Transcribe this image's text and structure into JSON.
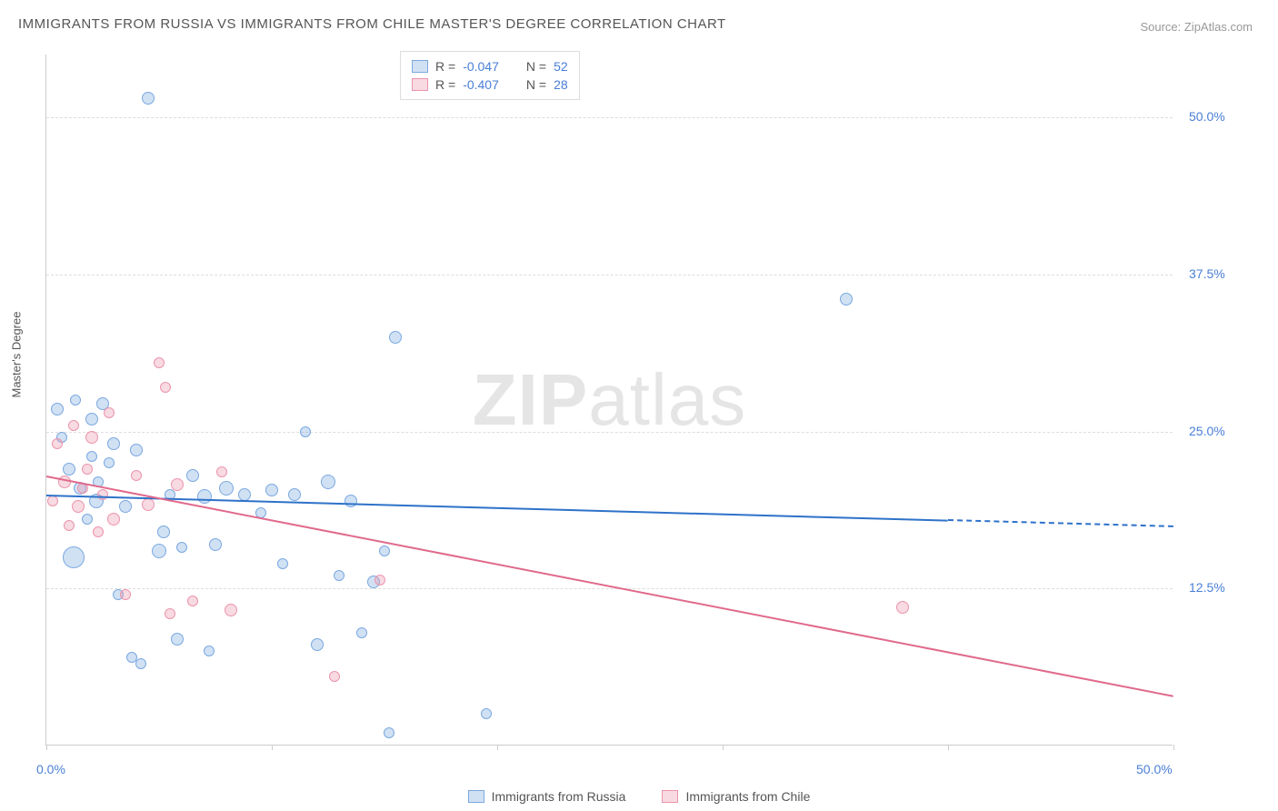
{
  "title": "IMMIGRANTS FROM RUSSIA VS IMMIGRANTS FROM CHILE MASTER'S DEGREE CORRELATION CHART",
  "source": "Source: ZipAtlas.com",
  "ylabel": "Master's Degree",
  "watermark_bold": "ZIP",
  "watermark_light": "atlas",
  "chart": {
    "type": "scatter",
    "xlim": [
      0,
      50
    ],
    "ylim": [
      0,
      55
    ],
    "xticks": [
      0,
      10,
      20,
      30,
      40,
      50
    ],
    "xtick_labels": [
      "0.0%",
      "",
      "",
      "",
      "",
      "50.0%"
    ],
    "yticks": [
      12.5,
      25.0,
      37.5,
      50.0
    ],
    "ytick_labels": [
      "12.5%",
      "25.0%",
      "37.5%",
      "50.0%"
    ],
    "background_color": "#ffffff",
    "grid_color": "#dddddd",
    "axis_color": "#cccccc",
    "tick_label_color": "#4a7fd6",
    "label_color": "#555555"
  },
  "series": [
    {
      "name": "Immigrants from Russia",
      "fill": "rgba(122,168,224,0.35)",
      "stroke": "#7aa8e0",
      "trend_color": "#2e72c9",
      "trend_y_start": 20.0,
      "trend_y_end": 17.5,
      "trend_x_solid_end": 40,
      "R": "-0.047",
      "N": "52",
      "points": [
        {
          "x": 0.5,
          "y": 26.8,
          "r": 7
        },
        {
          "x": 0.7,
          "y": 24.5,
          "r": 6
        },
        {
          "x": 1.0,
          "y": 22.0,
          "r": 7
        },
        {
          "x": 1.2,
          "y": 15.0,
          "r": 12
        },
        {
          "x": 1.3,
          "y": 27.5,
          "r": 6
        },
        {
          "x": 1.5,
          "y": 20.5,
          "r": 7
        },
        {
          "x": 1.8,
          "y": 18.0,
          "r": 6
        },
        {
          "x": 2.0,
          "y": 26.0,
          "r": 7
        },
        {
          "x": 2.0,
          "y": 23.0,
          "r": 6
        },
        {
          "x": 2.2,
          "y": 19.5,
          "r": 8
        },
        {
          "x": 2.3,
          "y": 21.0,
          "r": 6
        },
        {
          "x": 2.5,
          "y": 27.2,
          "r": 7
        },
        {
          "x": 2.8,
          "y": 22.5,
          "r": 6
        },
        {
          "x": 3.0,
          "y": 24.0,
          "r": 7
        },
        {
          "x": 3.2,
          "y": 12.0,
          "r": 6
        },
        {
          "x": 3.5,
          "y": 19.0,
          "r": 7
        },
        {
          "x": 3.8,
          "y": 7.0,
          "r": 6
        },
        {
          "x": 4.0,
          "y": 23.5,
          "r": 7
        },
        {
          "x": 4.2,
          "y": 6.5,
          "r": 6
        },
        {
          "x": 4.5,
          "y": 51.5,
          "r": 7
        },
        {
          "x": 5.0,
          "y": 15.5,
          "r": 8
        },
        {
          "x": 5.2,
          "y": 17.0,
          "r": 7
        },
        {
          "x": 5.5,
          "y": 20.0,
          "r": 6
        },
        {
          "x": 5.8,
          "y": 8.5,
          "r": 7
        },
        {
          "x": 6.0,
          "y": 15.8,
          "r": 6
        },
        {
          "x": 6.5,
          "y": 21.5,
          "r": 7
        },
        {
          "x": 7.0,
          "y": 19.8,
          "r": 8
        },
        {
          "x": 7.2,
          "y": 7.5,
          "r": 6
        },
        {
          "x": 7.5,
          "y": 16.0,
          "r": 7
        },
        {
          "x": 8.0,
          "y": 20.5,
          "r": 8
        },
        {
          "x": 8.8,
          "y": 20.0,
          "r": 7
        },
        {
          "x": 9.5,
          "y": 18.5,
          "r": 6
        },
        {
          "x": 10.0,
          "y": 20.3,
          "r": 7
        },
        {
          "x": 10.5,
          "y": 14.5,
          "r": 6
        },
        {
          "x": 11.0,
          "y": 20.0,
          "r": 7
        },
        {
          "x": 11.5,
          "y": 25.0,
          "r": 6
        },
        {
          "x": 12.0,
          "y": 8.0,
          "r": 7
        },
        {
          "x": 12.5,
          "y": 21.0,
          "r": 8
        },
        {
          "x": 13.0,
          "y": 13.5,
          "r": 6
        },
        {
          "x": 13.5,
          "y": 19.5,
          "r": 7
        },
        {
          "x": 14.0,
          "y": 9.0,
          "r": 6
        },
        {
          "x": 14.5,
          "y": 13.0,
          "r": 7
        },
        {
          "x": 15.0,
          "y": 15.5,
          "r": 6
        },
        {
          "x": 15.2,
          "y": 1.0,
          "r": 6
        },
        {
          "x": 15.5,
          "y": 32.5,
          "r": 7
        },
        {
          "x": 19.5,
          "y": 2.5,
          "r": 6
        },
        {
          "x": 35.5,
          "y": 35.5,
          "r": 7
        }
      ]
    },
    {
      "name": "Immigrants from Chile",
      "fill": "rgba(236,148,172,0.35)",
      "stroke": "#ec94ac",
      "trend_color": "#e06a8c",
      "trend_y_start": 21.5,
      "trend_y_end": 4.0,
      "trend_x_solid_end": 50,
      "R": "-0.407",
      "N": "28",
      "points": [
        {
          "x": 0.3,
          "y": 19.5,
          "r": 6
        },
        {
          "x": 0.5,
          "y": 24.0,
          "r": 6
        },
        {
          "x": 0.8,
          "y": 21.0,
          "r": 7
        },
        {
          "x": 1.0,
          "y": 17.5,
          "r": 6
        },
        {
          "x": 1.2,
          "y": 25.5,
          "r": 6
        },
        {
          "x": 1.4,
          "y": 19.0,
          "r": 7
        },
        {
          "x": 1.6,
          "y": 20.5,
          "r": 6
        },
        {
          "x": 1.8,
          "y": 22.0,
          "r": 6
        },
        {
          "x": 2.0,
          "y": 24.5,
          "r": 7
        },
        {
          "x": 2.3,
          "y": 17.0,
          "r": 6
        },
        {
          "x": 2.5,
          "y": 20.0,
          "r": 6
        },
        {
          "x": 2.8,
          "y": 26.5,
          "r": 6
        },
        {
          "x": 3.0,
          "y": 18.0,
          "r": 7
        },
        {
          "x": 3.5,
          "y": 12.0,
          "r": 6
        },
        {
          "x": 4.0,
          "y": 21.5,
          "r": 6
        },
        {
          "x": 4.5,
          "y": 19.2,
          "r": 7
        },
        {
          "x": 5.0,
          "y": 30.5,
          "r": 6
        },
        {
          "x": 5.3,
          "y": 28.5,
          "r": 6
        },
        {
          "x": 5.5,
          "y": 10.5,
          "r": 6
        },
        {
          "x": 5.8,
          "y": 20.8,
          "r": 7
        },
        {
          "x": 6.5,
          "y": 11.5,
          "r": 6
        },
        {
          "x": 7.8,
          "y": 21.8,
          "r": 6
        },
        {
          "x": 8.2,
          "y": 10.8,
          "r": 7
        },
        {
          "x": 12.8,
          "y": 5.5,
          "r": 6
        },
        {
          "x": 14.8,
          "y": 13.2,
          "r": 6
        },
        {
          "x": 38.0,
          "y": 11.0,
          "r": 7
        }
      ]
    }
  ],
  "legend_bottom": [
    {
      "label": "Immigrants from Russia",
      "fill": "rgba(122,168,224,0.35)",
      "stroke": "#7aa8e0"
    },
    {
      "label": "Immigrants from Chile",
      "fill": "rgba(236,148,172,0.35)",
      "stroke": "#ec94ac"
    }
  ]
}
